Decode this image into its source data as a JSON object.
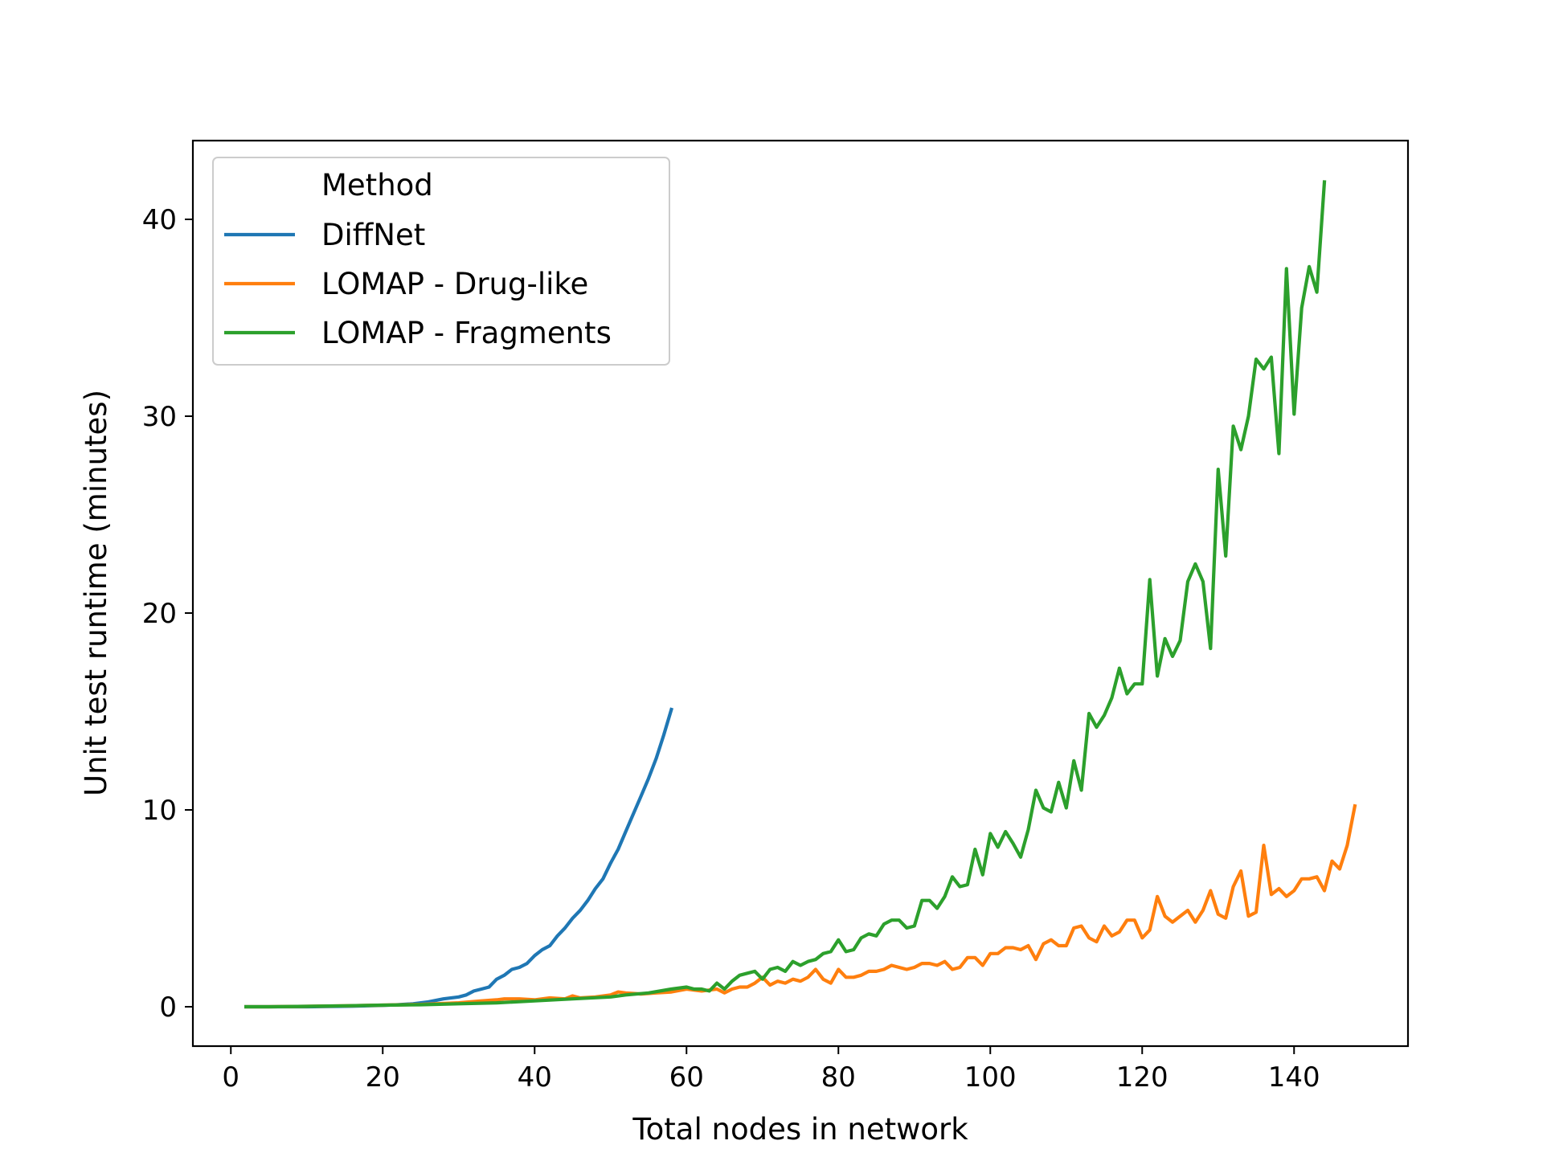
{
  "chart_data": {
    "type": "line",
    "xlabel": "Total nodes in network",
    "ylabel": "Unit test runtime (minutes)",
    "xlim": [
      -5,
      155
    ],
    "ylim": [
      -2,
      44
    ],
    "xticks": [
      0,
      20,
      40,
      60,
      80,
      100,
      120,
      140
    ],
    "yticks": [
      0,
      10,
      20,
      30,
      40
    ],
    "grid": false,
    "legend": {
      "title": "Method",
      "position": "top-left"
    },
    "series": [
      {
        "name": "DiffNet",
        "color": "#1f77b4",
        "x": [
          2,
          4,
          6,
          8,
          10,
          12,
          14,
          16,
          18,
          20,
          22,
          24,
          26,
          28,
          30,
          31,
          32,
          33,
          34,
          35,
          36,
          37,
          38,
          39,
          40,
          41,
          42,
          43,
          44,
          45,
          46,
          47,
          48,
          49,
          50,
          51,
          52,
          53,
          54,
          55,
          56,
          57,
          58
        ],
        "y": [
          0,
          0,
          0,
          0,
          0,
          0.01,
          0.02,
          0.03,
          0.05,
          0.07,
          0.1,
          0.15,
          0.25,
          0.4,
          0.5,
          0.6,
          0.8,
          0.9,
          1.0,
          1.4,
          1.6,
          1.9,
          2.0,
          2.2,
          2.6,
          2.9,
          3.1,
          3.6,
          4.0,
          4.5,
          4.9,
          5.4,
          6.0,
          6.5,
          7.3,
          8.0,
          8.9,
          9.8,
          10.7,
          11.6,
          12.6,
          13.8,
          15.1
        ]
      },
      {
        "name": "LOMAP - Drug-like",
        "color": "#ff7f0e",
        "x": [
          2,
          5,
          10,
          15,
          20,
          25,
          30,
          33,
          35,
          36,
          37,
          38,
          40,
          42,
          44,
          45,
          46,
          48,
          50,
          51,
          52,
          54,
          56,
          58,
          60,
          62,
          64,
          65,
          66,
          67,
          68,
          69,
          70,
          71,
          72,
          73,
          74,
          75,
          76,
          77,
          78,
          79,
          80,
          81,
          82,
          83,
          84,
          85,
          86,
          87,
          88,
          89,
          90,
          91,
          92,
          93,
          94,
          95,
          96,
          97,
          98,
          99,
          100,
          101,
          102,
          103,
          104,
          105,
          106,
          107,
          108,
          109,
          110,
          111,
          112,
          113,
          114,
          115,
          116,
          117,
          118,
          119,
          120,
          121,
          122,
          123,
          124,
          125,
          126,
          127,
          128,
          129,
          130,
          131,
          132,
          133,
          134,
          135,
          136,
          137,
          138,
          139,
          140,
          141,
          142,
          143,
          144,
          145,
          146,
          147,
          148
        ],
        "y": [
          0,
          0,
          0.02,
          0.05,
          0.08,
          0.12,
          0.2,
          0.3,
          0.35,
          0.4,
          0.4,
          0.4,
          0.35,
          0.45,
          0.4,
          0.55,
          0.45,
          0.5,
          0.6,
          0.75,
          0.7,
          0.65,
          0.7,
          0.75,
          0.9,
          0.8,
          0.9,
          0.7,
          0.9,
          1.0,
          1.0,
          1.2,
          1.5,
          1.1,
          1.3,
          1.2,
          1.4,
          1.3,
          1.5,
          1.9,
          1.4,
          1.2,
          1.9,
          1.5,
          1.5,
          1.6,
          1.8,
          1.8,
          1.9,
          2.1,
          2.0,
          1.9,
          2.0,
          2.2,
          2.2,
          2.1,
          2.3,
          1.9,
          2.0,
          2.5,
          2.5,
          2.1,
          2.7,
          2.7,
          3.0,
          3.0,
          2.9,
          3.1,
          2.4,
          3.2,
          3.4,
          3.1,
          3.1,
          4.0,
          4.1,
          3.5,
          3.3,
          4.1,
          3.6,
          3.8,
          4.4,
          4.4,
          3.5,
          3.9,
          5.6,
          4.6,
          4.3,
          4.6,
          4.9,
          4.3,
          4.9,
          5.9,
          4.7,
          4.5,
          6.1,
          6.9,
          4.6,
          4.8,
          8.2,
          5.7,
          6.0,
          5.6,
          5.9,
          6.5,
          6.5,
          6.6,
          5.9,
          7.4,
          7.0,
          8.2,
          10.2
        ]
      },
      {
        "name": "LOMAP - Fragments",
        "color": "#2ca02c",
        "x": [
          2,
          5,
          10,
          15,
          20,
          25,
          30,
          35,
          40,
          45,
          50,
          52,
          55,
          58,
          60,
          61,
          62,
          63,
          64,
          65,
          66,
          67,
          68,
          69,
          70,
          71,
          72,
          73,
          74,
          75,
          76,
          77,
          78,
          79,
          80,
          81,
          82,
          83,
          84,
          85,
          86,
          87,
          88,
          89,
          90,
          91,
          92,
          93,
          94,
          95,
          96,
          97,
          98,
          99,
          100,
          101,
          102,
          103,
          104,
          105,
          106,
          107,
          108,
          109,
          110,
          111,
          112,
          113,
          114,
          115,
          116,
          117,
          118,
          119,
          120,
          121,
          122,
          123,
          124,
          125,
          126,
          127,
          128,
          129,
          130,
          131,
          132,
          133,
          134,
          135,
          136,
          137,
          138,
          139,
          140,
          141,
          142,
          143,
          144
        ],
        "y": [
          0,
          0,
          0.02,
          0.05,
          0.08,
          0.1,
          0.15,
          0.2,
          0.3,
          0.4,
          0.5,
          0.6,
          0.7,
          0.9,
          1.0,
          0.9,
          0.9,
          0.8,
          1.2,
          0.9,
          1.3,
          1.6,
          1.7,
          1.8,
          1.4,
          1.9,
          2.0,
          1.8,
          2.3,
          2.1,
          2.3,
          2.4,
          2.7,
          2.8,
          3.4,
          2.8,
          2.9,
          3.5,
          3.7,
          3.6,
          4.2,
          4.4,
          4.4,
          4.0,
          4.1,
          5.4,
          5.4,
          5.0,
          5.6,
          6.6,
          6.1,
          6.2,
          8.0,
          6.7,
          8.8,
          8.1,
          8.9,
          8.3,
          7.6,
          9.0,
          11.0,
          10.1,
          9.9,
          11.4,
          10.1,
          12.5,
          11.0,
          14.9,
          14.2,
          14.8,
          15.7,
          17.2,
          15.9,
          16.4,
          16.4,
          21.7,
          16.8,
          18.7,
          17.8,
          18.6,
          21.6,
          22.5,
          21.6,
          18.2,
          27.3,
          22.9,
          29.5,
          28.3,
          30.0,
          32.9,
          32.4,
          33.0,
          28.1,
          37.5,
          30.1,
          35.5,
          37.6,
          36.3,
          41.9
        ]
      }
    ]
  }
}
